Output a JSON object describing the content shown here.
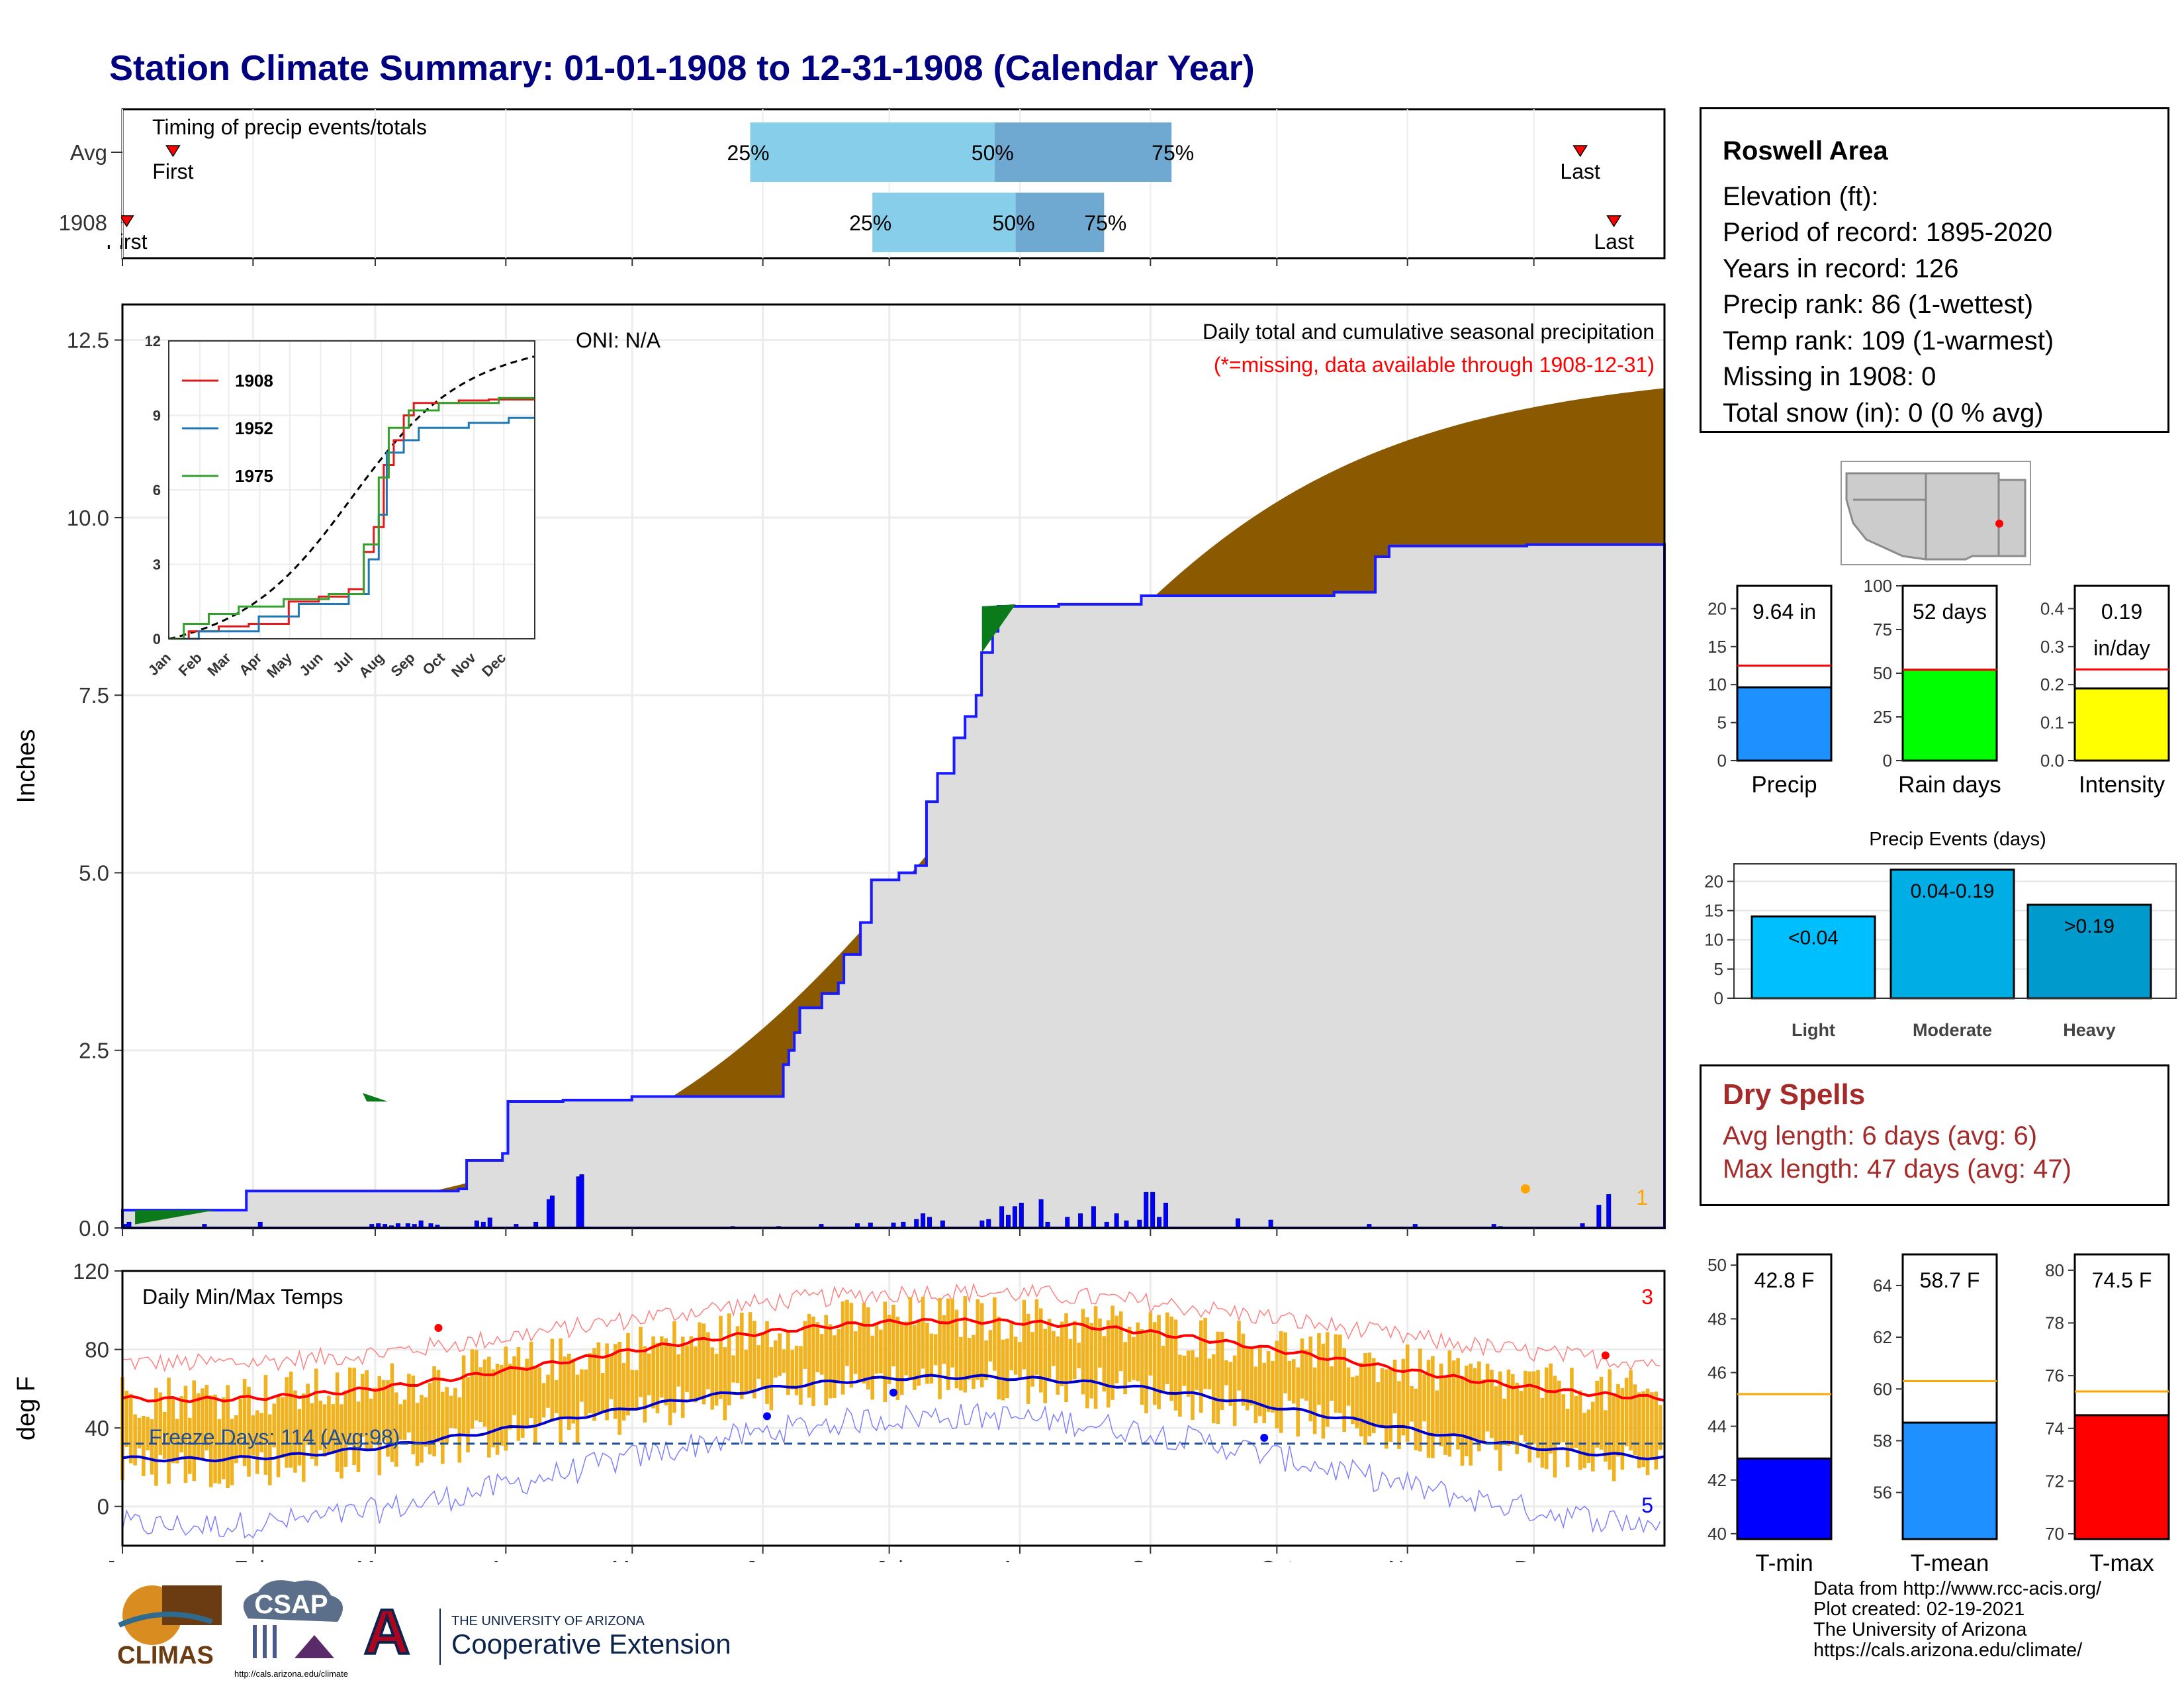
{
  "title": "Station Climate Summary: 01-01-1908 to 12-31-1908 (Calendar Year)",
  "timing": {
    "label": "Timing of precip events/totals",
    "rows": [
      "Avg",
      "1908"
    ],
    "avg": {
      "first_doy": 12,
      "p25_doy": 149,
      "p50_doy": 207,
      "p75_doy": 249,
      "last_doy": 346
    },
    "year": {
      "first_doy": 1,
      "p25_doy": 178,
      "p50_doy": 212,
      "p75_doy": 233,
      "last_doy": 354
    },
    "marker_first": "First",
    "marker_last": "Last",
    "marker_first_year": "First",
    "p25": "25%",
    "p50": "50%",
    "p75": "75%"
  },
  "precip_chart": {
    "ylabel": "Inches",
    "yticks": [
      "0.0",
      "2.5",
      "5.0",
      "7.5",
      "10.0",
      "12.5"
    ],
    "ylim": [
      0,
      13.0
    ],
    "annotation_right": "Daily total and cumulative seasonal precipitation",
    "annotation_missing": "(*=missing, data available through 1908-12-31)",
    "oni": "ONI: N/A",
    "corner_count": "1",
    "colors": {
      "above_avg": "#8b5a00",
      "below_avg": "#0a7a1a",
      "obs": "#1a1aff",
      "fill": "#dddddd"
    }
  },
  "inset": {
    "yticks": [
      "0",
      "3",
      "6",
      "9",
      "12"
    ],
    "xticks": [
      "Jan",
      "Feb",
      "Mar",
      "Apr",
      "May",
      "Jun",
      "Jul",
      "Aug",
      "Sep",
      "Oct",
      "Nov",
      "Dec"
    ],
    "legend": [
      {
        "name": "1908",
        "color": "#e31a1c"
      },
      {
        "name": "1952",
        "color": "#1f78b4"
      },
      {
        "name": "1975",
        "color": "#33a02c"
      }
    ]
  },
  "temp_chart": {
    "ylabel": "deg F",
    "yticks": [
      "0",
      "40",
      "80",
      "120"
    ],
    "ylim": [
      -20,
      120
    ],
    "label": "Daily Min/Max Temps",
    "freeze": "Freeze Days: 114 (Avg:98)",
    "count_top": "3",
    "count_bottom": "5",
    "months": [
      "Jan",
      "Feb",
      "Mar",
      "Apr",
      "May",
      "Jun",
      "Jul",
      "Aug",
      "Sep",
      "Oct",
      "Nov",
      "Dec"
    ]
  },
  "info": {
    "station": "Roswell Area",
    "lines": [
      "Elevation (ft):",
      "Period of record: 1895-2020",
      "Years in record: 126",
      "Precip rank: 86 (1-wettest)",
      "Temp rank: 109 (1-warmest)",
      "Missing in 1908: 0",
      "Total snow (in): 0 (0 % avg)"
    ]
  },
  "mini_bars": [
    {
      "name": "Precip",
      "value_label": "9.64 in",
      "value": 9.64,
      "avg": 12.5,
      "ymax": 23,
      "ticks": [
        "0",
        "5",
        "10",
        "15",
        "20"
      ],
      "tickvals": [
        0,
        5,
        10,
        15,
        20
      ],
      "color": "#1e90ff"
    },
    {
      "name": "Rain days",
      "value_label": "52 days",
      "value": 52,
      "avg": 52,
      "ymax": 100,
      "ticks": [
        "0",
        "25",
        "50",
        "75",
        "100"
      ],
      "tickvals": [
        0,
        25,
        50,
        75,
        100
      ],
      "color": "#00ff00"
    },
    {
      "name": "Intensity",
      "value_label": "0.19",
      "value_label2": "in/day",
      "value": 0.19,
      "avg": 0.24,
      "ymax": 0.46,
      "ticks": [
        "0.0",
        "0.1",
        "0.2",
        "0.3",
        "0.4"
      ],
      "tickvals": [
        0,
        0.1,
        0.2,
        0.3,
        0.4
      ],
      "color": "#ffff00"
    }
  ],
  "events": {
    "title": "Precip Events (days)",
    "categories": [
      "Light",
      "Moderate",
      "Heavy"
    ],
    "labels": [
      "<0.04",
      "0.04-0.19",
      ">0.19"
    ],
    "values": [
      14,
      22,
      16
    ],
    "ymax": 23,
    "ticks": [
      "0",
      "5",
      "10",
      "15",
      "20"
    ],
    "colors": [
      "#00bfff",
      "#00aee6",
      "#009acd"
    ]
  },
  "dry": {
    "title": "Dry Spells",
    "avg": "Avg length: 6 days (avg: 6)",
    "max": "Max length: 47 days (avg: 47)"
  },
  "temp_bars": [
    {
      "name": "T-min",
      "value_label": "42.8 F",
      "value": 42.8,
      "avg": 45.2,
      "ymin": 39.8,
      "ymax": 50.4,
      "ticks": [
        "40",
        "42",
        "44",
        "46",
        "48",
        "50"
      ],
      "tickvals": [
        40,
        42,
        44,
        46,
        48,
        50
      ],
      "color": "#0000ff"
    },
    {
      "name": "T-mean",
      "value_label": "58.7 F",
      "value": 58.7,
      "avg": 60.3,
      "ymin": 54.2,
      "ymax": 65.2,
      "ticks": [
        "56",
        "58",
        "60",
        "62",
        "64"
      ],
      "tickvals": [
        56,
        58,
        60,
        62,
        64
      ],
      "color": "#1e90ff"
    },
    {
      "name": "T-max",
      "value_label": "74.5 F",
      "value": 74.5,
      "avg": 75.4,
      "ymin": 69.8,
      "ymax": 80.6,
      "ticks": [
        "70",
        "72",
        "74",
        "76",
        "78",
        "80"
      ],
      "tickvals": [
        70,
        72,
        74,
        76,
        78,
        80
      ],
      "color": "#ff0000"
    }
  ],
  "credits": [
    "Data from http://www.rcc-acis.org/",
    "Plot created: 02-19-2021",
    "The University of Arizona",
    "https://cals.arizona.edu/climate/"
  ],
  "logos": {
    "climas": "CLIMAS",
    "csap": "CSAP",
    "csap_url": "http://cals.arizona.edu/climate",
    "ua_line1": "THE UNIVERSITY OF ARIZONA",
    "ua_line2": "Cooperative Extension"
  }
}
